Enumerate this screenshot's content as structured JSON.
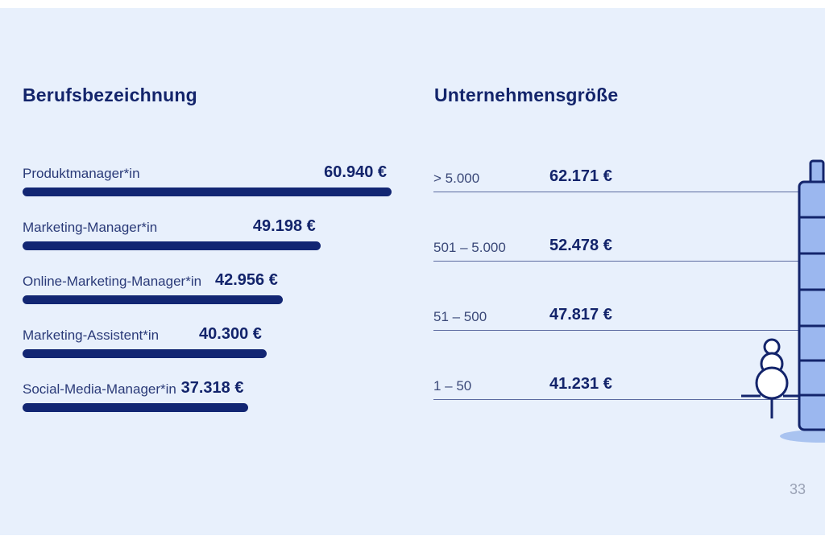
{
  "slide": {
    "page_number": "33"
  },
  "chart_data": [
    {
      "type": "bar",
      "orientation": "horizontal",
      "title": "Berufsbezeichnung",
      "categories": [
        "Produktmanager*in",
        "Marketing-Manager*in",
        "Online-Marketing-Manager*in",
        "Marketing-Assistent*in",
        "Social-Media-Manager*in"
      ],
      "values": [
        60940,
        49198,
        42956,
        40300,
        37318
      ],
      "value_labels": [
        "60.940 €",
        "49.198 €",
        "42.956 €",
        "40.300 €",
        "37.318 €"
      ],
      "bar_color": "#122673"
    },
    {
      "type": "table",
      "title": "Unternehmensgröße",
      "categories": [
        "> 5.000",
        "501 – 5.000",
        "51 – 500",
        "1 – 50"
      ],
      "values": [
        62171,
        52478,
        47817,
        41231
      ],
      "value_labels": [
        "62.171 €",
        "52.478 €",
        "47.817 €",
        "41.231 €"
      ]
    }
  ],
  "colors": {
    "background": "#e8f0fc",
    "accent": "#13246b",
    "building_fill": "#9bb7ef"
  }
}
